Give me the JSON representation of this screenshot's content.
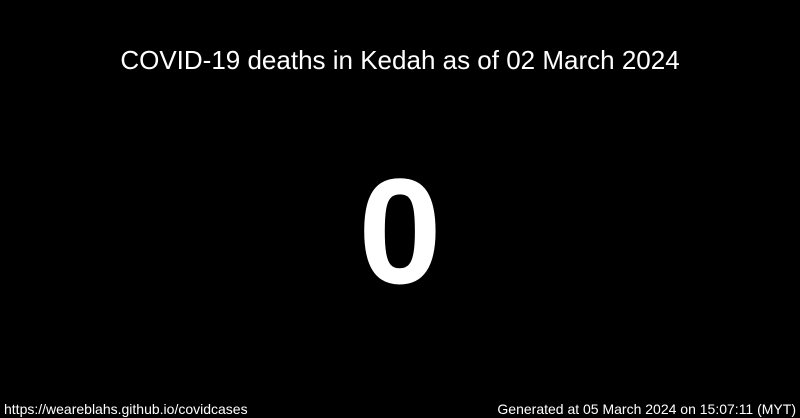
{
  "title": "COVID-19 deaths in Kedah as of 02 March 2024",
  "count": "0",
  "footer": {
    "url": "https://weareblahs.github.io/covidcases",
    "generated": "Generated at 05 March 2024 on 15:07:11 (MYT)"
  },
  "colors": {
    "background": "#000000",
    "text": "#ffffff"
  }
}
